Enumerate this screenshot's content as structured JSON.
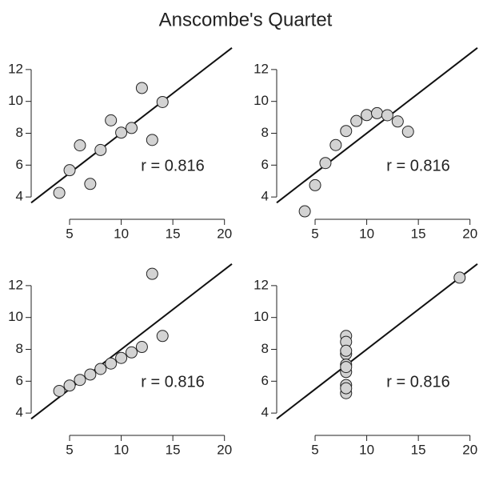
{
  "title": "Anscombe's Quartet",
  "chart_data": [
    {
      "type": "scatter",
      "x": [
        10,
        8,
        13,
        9,
        11,
        14,
        6,
        4,
        12,
        7,
        5
      ],
      "values": [
        8.04,
        6.95,
        7.58,
        8.81,
        8.33,
        9.96,
        7.24,
        4.26,
        10.84,
        4.82,
        5.68
      ],
      "color": "#d3d3d3",
      "xlim": [
        1.28,
        20.72
      ],
      "ylim": [
        2.6,
        13.4
      ],
      "xticks": [
        5,
        10,
        15,
        20
      ],
      "yticks": [
        4,
        6,
        8,
        10,
        12
      ],
      "regression": {
        "intercept": 3,
        "slope": 0.5
      },
      "annotation": "r = 0.816"
    },
    {
      "type": "scatter",
      "x": [
        10,
        8,
        13,
        9,
        11,
        14,
        6,
        4,
        12,
        7,
        5
      ],
      "values": [
        9.14,
        8.14,
        8.74,
        8.77,
        9.26,
        8.1,
        6.13,
        3.1,
        9.13,
        7.26,
        4.74
      ],
      "color": "#d3d3d3",
      "xlim": [
        1.28,
        20.72
      ],
      "ylim": [
        2.6,
        13.4
      ],
      "xticks": [
        5,
        10,
        15,
        20
      ],
      "yticks": [
        4,
        6,
        8,
        10,
        12
      ],
      "regression": {
        "intercept": 3,
        "slope": 0.5
      },
      "annotation": "r = 0.816"
    },
    {
      "type": "scatter",
      "x": [
        10,
        8,
        13,
        9,
        11,
        14,
        6,
        4,
        12,
        7,
        5
      ],
      "values": [
        7.46,
        6.77,
        12.74,
        7.11,
        7.81,
        8.84,
        6.08,
        5.39,
        8.15,
        6.42,
        5.73
      ],
      "color": "#d3d3d3",
      "xlim": [
        1.28,
        20.72
      ],
      "ylim": [
        2.6,
        13.4
      ],
      "xticks": [
        5,
        10,
        15,
        20
      ],
      "yticks": [
        4,
        6,
        8,
        10,
        12
      ],
      "regression": {
        "intercept": 3,
        "slope": 0.5
      },
      "annotation": "r = 0.816"
    },
    {
      "type": "scatter",
      "x": [
        8,
        8,
        8,
        8,
        8,
        8,
        8,
        19,
        8,
        8,
        8
      ],
      "values": [
        6.58,
        5.76,
        7.71,
        8.84,
        8.47,
        7.04,
        5.25,
        12.5,
        5.56,
        7.91,
        6.89
      ],
      "color": "#d3d3d3",
      "xlim": [
        1.28,
        20.72
      ],
      "ylim": [
        2.6,
        13.4
      ],
      "xticks": [
        5,
        10,
        15,
        20
      ],
      "yticks": [
        4,
        6,
        8,
        10,
        12
      ],
      "regression": {
        "intercept": 3,
        "slope": 0.5
      },
      "annotation": "r = 0.816"
    }
  ]
}
